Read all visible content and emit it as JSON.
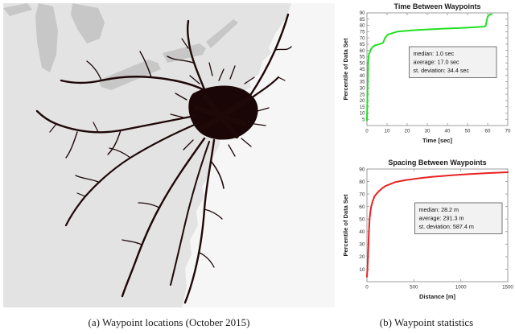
{
  "captions": {
    "a": "(a) Waypoint locations (October 2015)",
    "b": "(b) Waypoint statistics"
  },
  "chart_data": [
    {
      "type": "line",
      "title": "Time Between Waypoints",
      "xlabel": "Time [sec]",
      "ylabel": "Percentile of Data Set",
      "xlim": [
        0,
        70
      ],
      "ylim": [
        0,
        90
      ],
      "xticks": [
        0,
        10,
        20,
        30,
        40,
        50,
        60,
        70
      ],
      "yticks": [
        5,
        10,
        15,
        20,
        25,
        30,
        35,
        40,
        45,
        50,
        55,
        60,
        65,
        70,
        75,
        80,
        85,
        90
      ],
      "line_color": "#21e021",
      "legend_position": "none",
      "grid": false,
      "annotation": [
        "median: 1.0 sec",
        "average: 17.0 sec",
        "st. deviation: 34.4 sec"
      ],
      "annotation_pos": [
        0.3,
        0.3,
        0.62
      ],
      "points": [
        [
          0,
          4
        ],
        [
          0.3,
          30
        ],
        [
          0.6,
          50
        ],
        [
          1,
          57
        ],
        [
          1.5,
          59
        ],
        [
          2,
          61
        ],
        [
          3,
          63
        ],
        [
          4,
          64
        ],
        [
          5,
          64.5
        ],
        [
          6,
          65
        ],
        [
          7,
          65.5
        ],
        [
          8,
          66
        ],
        [
          9,
          70
        ],
        [
          10,
          72
        ],
        [
          11,
          73
        ],
        [
          13,
          74
        ],
        [
          15,
          75
        ],
        [
          18,
          75.5
        ],
        [
          22,
          76
        ],
        [
          27,
          76.5
        ],
        [
          33,
          77
        ],
        [
          40,
          77.5
        ],
        [
          47,
          78
        ],
        [
          53,
          78.5
        ],
        [
          58,
          79
        ],
        [
          59,
          79.5
        ],
        [
          60,
          87
        ],
        [
          61,
          88.5
        ],
        [
          62,
          89
        ]
      ]
    },
    {
      "type": "line",
      "title": "Spacing Between Waypoints",
      "xlabel": "Distance [m]",
      "ylabel": "Percentile of Data Set",
      "xlim": [
        0,
        1500
      ],
      "ylim": [
        0,
        90
      ],
      "xticks": [
        0,
        500,
        1000,
        1500
      ],
      "yticks": [
        10,
        20,
        30,
        40,
        50,
        60,
        70,
        80,
        90
      ],
      "line_color": "#e82222",
      "legend_position": "none",
      "grid": false,
      "annotation": [
        "median: 28.2 m",
        "average: 291.3 m",
        "st. deviation: 587.4 m"
      ],
      "annotation_pos": [
        0.34,
        0.3,
        0.62
      ],
      "points": [
        [
          0,
          4
        ],
        [
          5,
          10
        ],
        [
          10,
          18
        ],
        [
          15,
          28
        ],
        [
          20,
          38
        ],
        [
          28,
          50
        ],
        [
          35,
          55
        ],
        [
          45,
          60
        ],
        [
          60,
          64
        ],
        [
          80,
          68
        ],
        [
          100,
          70
        ],
        [
          130,
          72.5
        ],
        [
          160,
          74.5
        ],
        [
          200,
          76.5
        ],
        [
          250,
          78
        ],
        [
          300,
          79.5
        ],
        [
          400,
          81
        ],
        [
          500,
          82
        ],
        [
          600,
          83
        ],
        [
          700,
          83.8
        ],
        [
          800,
          84.4
        ],
        [
          900,
          85
        ],
        [
          1000,
          85.5
        ],
        [
          1100,
          86
        ],
        [
          1200,
          86.4
        ],
        [
          1300,
          86.8
        ],
        [
          1400,
          87.1
        ],
        [
          1500,
          87.4
        ]
      ]
    }
  ]
}
